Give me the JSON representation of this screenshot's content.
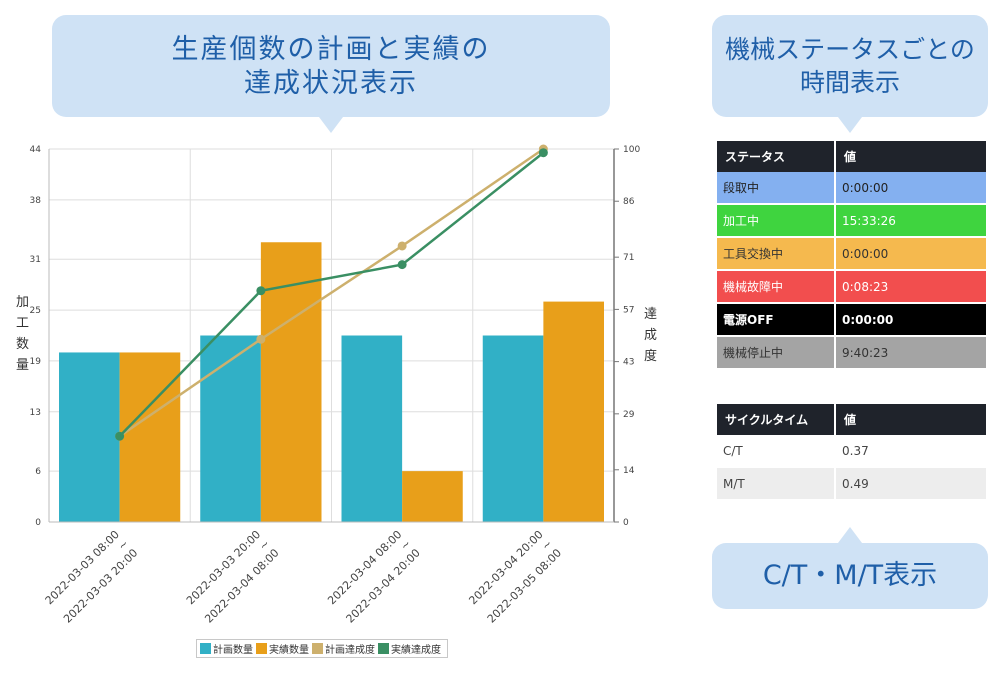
{
  "callouts": {
    "production_line1": "生産個数の計画と実績の",
    "production_line2": "達成状況表示",
    "status_line1": "機械ステータスごとの",
    "status_line2": "時間表示",
    "ctmt": "C/T・M/T表示"
  },
  "chart_data": {
    "type": "bar",
    "categories": [
      [
        "2022-03-03 08:00",
        "~",
        "2022-03-03 20:00"
      ],
      [
        "2022-03-03 20:00",
        "~",
        "2022-03-04 08:00"
      ],
      [
        "2022-03-04 08:00",
        "~",
        "2022-03-04 20:00"
      ],
      [
        "2022-03-04 20:00",
        "~",
        "2022-03-05 08:00"
      ]
    ],
    "series": [
      {
        "name": "計画数量",
        "type": "bar",
        "axis": "left",
        "color": "#31b0c6",
        "values": [
          20,
          22,
          22,
          22
        ]
      },
      {
        "name": "実績数量",
        "type": "bar",
        "axis": "left",
        "color": "#e89f1a",
        "values": [
          20,
          33,
          6,
          26
        ]
      },
      {
        "name": "計画達成度",
        "type": "line",
        "axis": "right",
        "color": "#cdb06d",
        "values": [
          23,
          49,
          74,
          100
        ]
      },
      {
        "name": "実績達成度",
        "type": "line",
        "axis": "right",
        "color": "#3a8f63",
        "values": [
          23,
          62,
          69,
          99
        ]
      }
    ],
    "ylabel": "加工数量",
    "y2label": "達成度",
    "ylim": [
      0,
      44
    ],
    "y2lim": [
      0,
      100
    ],
    "yticks": [
      0,
      6,
      13,
      19,
      25,
      31,
      38,
      44
    ],
    "y2ticks": [
      0,
      14,
      29,
      43,
      57,
      71,
      86,
      100
    ],
    "grid": true,
    "legend": "bottom"
  },
  "status_table": {
    "headers": [
      "ステータス",
      "値"
    ],
    "rows": [
      {
        "label": "段取中",
        "value": "0:00:00",
        "color": "#84b0f0",
        "text_color": "#222222"
      },
      {
        "label": "加工中",
        "value": "15:33:26",
        "color": "#3fd43f",
        "text_color": "#ffffff"
      },
      {
        "label": "工具交換中",
        "value": "0:00:00",
        "color": "#f5b94e",
        "text_color": "#333333"
      },
      {
        "label": "機械故障中",
        "value": "0:08:23",
        "color": "#f24e4e",
        "text_color": "#ffffff"
      },
      {
        "label": "電源OFF",
        "value": "0:00:00",
        "color": "#000000",
        "text_color": "#ffffff"
      },
      {
        "label": "機械停止中",
        "value": "9:40:23",
        "color": "#a4a4a4",
        "text_color": "#333333"
      }
    ]
  },
  "cycle_table": {
    "headers": [
      "サイクルタイム",
      "値"
    ],
    "rows": [
      {
        "label": "C/T",
        "value": "0.37",
        "color": "#ffffff"
      },
      {
        "label": "M/T",
        "value": "0.49",
        "color": "#ededed"
      }
    ]
  }
}
